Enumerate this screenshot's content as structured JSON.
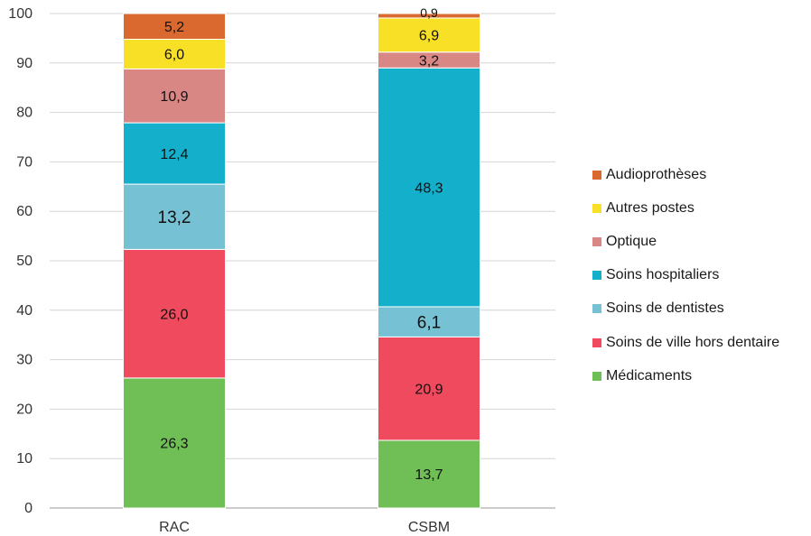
{
  "chart_data": {
    "type": "bar",
    "stacked": true,
    "categories": [
      "RAC",
      "CSBM"
    ],
    "ylim": [
      0,
      100
    ],
    "yticks": [
      0,
      10,
      20,
      30,
      40,
      50,
      60,
      70,
      80,
      90,
      100
    ],
    "grid": true,
    "legend_position": "right",
    "series": [
      {
        "name": "Médicaments",
        "color": "#70bf56",
        "values": [
          26.3,
          13.7
        ],
        "labels": [
          "26,3",
          "13,7"
        ]
      },
      {
        "name": "Soins de ville hors dentaire",
        "color": "#ef4a5e",
        "values": [
          26.0,
          20.9
        ],
        "labels": [
          "26,0",
          "20,9"
        ]
      },
      {
        "name": "Soins de dentistes",
        "color": "#76c1d3",
        "values": [
          13.2,
          6.1
        ],
        "labels": [
          "13,2",
          "6,1"
        ]
      },
      {
        "name": "Soins hospitaliers",
        "color": "#14afcb",
        "values": [
          12.4,
          48.3
        ],
        "labels": [
          "12,4",
          "48,3"
        ]
      },
      {
        "name": "Optique",
        "color": "#d98785",
        "values": [
          10.9,
          3.2
        ],
        "labels": [
          "10,9",
          "3,2"
        ]
      },
      {
        "name": "Autres postes",
        "color": "#f8e026",
        "values": [
          6.0,
          6.9
        ],
        "labels": [
          "6,0",
          "6,9"
        ]
      },
      {
        "name": "Audioprothèses",
        "color": "#d9692f",
        "values": [
          5.2,
          0.9
        ],
        "labels": [
          "5,2",
          "0,9"
        ]
      }
    ]
  }
}
